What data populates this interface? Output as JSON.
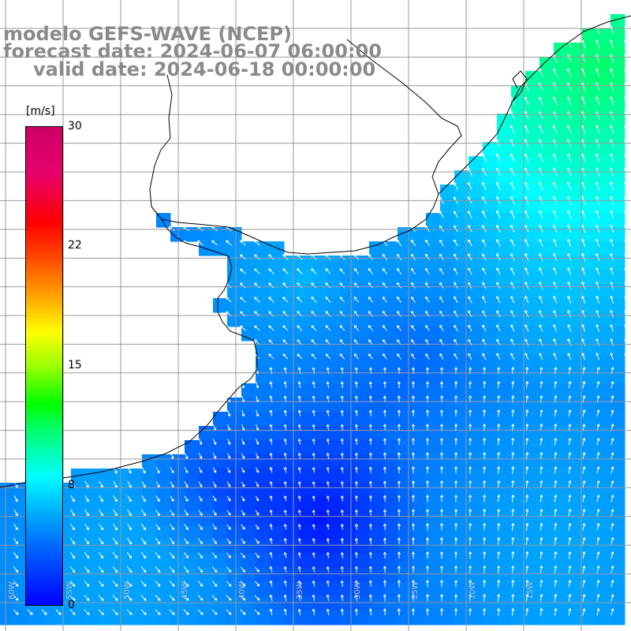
{
  "title": {
    "line1": "modelo GEFS-WAVE (NCEP)",
    "line2": "forecast date: 2024-06-07 06:00:00",
    "line3": "valid date: 2024-06-18 00:00:00"
  },
  "colorbar": {
    "unit": "[m/s]",
    "ticks": [
      "30",
      "22",
      "15",
      "8",
      "0"
    ],
    "min": 0,
    "max": 30,
    "colors": [
      "#0000ff",
      "#00b4ff",
      "#00ffff",
      "#00ff00",
      "#ffff00",
      "#ff0000",
      "#cc0066"
    ]
  },
  "map": {
    "field": "wind speed",
    "land_color": "#ffffff",
    "coastline_color": "#000000",
    "grid_color": "#999999",
    "arrow_color": "#ffffff",
    "longitude_labels": [
      "60W",
      "55W",
      "50W",
      "45W",
      "40W",
      "35W",
      "30W",
      "25W",
      "20W",
      "15W"
    ]
  }
}
